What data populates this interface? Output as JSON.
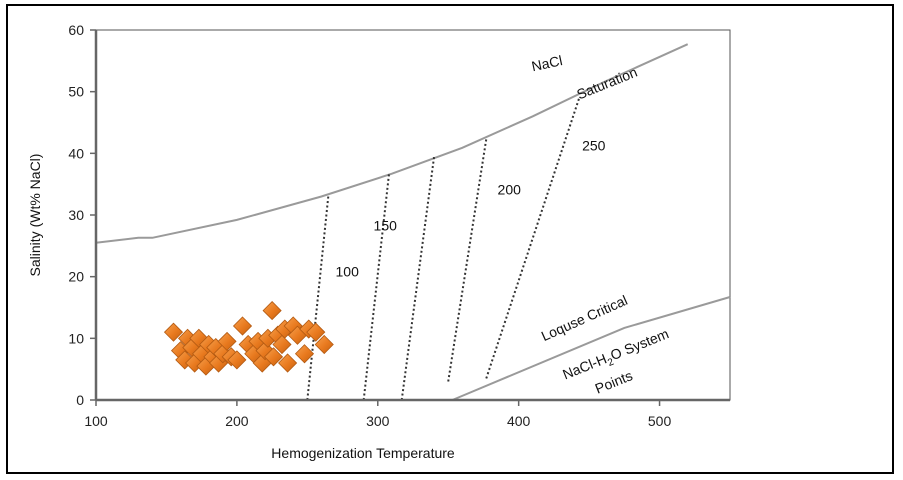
{
  "chart_data": {
    "type": "scatter",
    "xlabel": "Hemogenization Temperature",
    "ylabel": "Salinity (Wt% NaCl)",
    "xlim": [
      100,
      550
    ],
    "ylim": [
      0,
      60
    ],
    "x_ticks": [
      100,
      200,
      300,
      400,
      500
    ],
    "y_ticks": [
      0,
      10,
      20,
      30,
      40,
      50,
      60
    ],
    "grid": false,
    "marker_color": "#e8791e",
    "curve_color": "#9a9a9a",
    "dotted_color": "#333333",
    "points": [
      {
        "x": 155,
        "y": 11
      },
      {
        "x": 160,
        "y": 8
      },
      {
        "x": 163,
        "y": 6.5
      },
      {
        "x": 165,
        "y": 10
      },
      {
        "x": 168,
        "y": 8.5
      },
      {
        "x": 170,
        "y": 6
      },
      {
        "x": 173,
        "y": 10
      },
      {
        "x": 175,
        "y": 7.5
      },
      {
        "x": 178,
        "y": 5.5
      },
      {
        "x": 180,
        "y": 9
      },
      {
        "x": 183,
        "y": 7
      },
      {
        "x": 185,
        "y": 8.5
      },
      {
        "x": 187,
        "y": 6
      },
      {
        "x": 190,
        "y": 7.5
      },
      {
        "x": 193,
        "y": 9.5
      },
      {
        "x": 196,
        "y": 7
      },
      {
        "x": 200,
        "y": 6.5
      },
      {
        "x": 204,
        "y": 12
      },
      {
        "x": 208,
        "y": 9
      },
      {
        "x": 212,
        "y": 7.5
      },
      {
        "x": 215,
        "y": 9.5
      },
      {
        "x": 218,
        "y": 6
      },
      {
        "x": 220,
        "y": 8
      },
      {
        "x": 222,
        "y": 10
      },
      {
        "x": 225,
        "y": 14.5
      },
      {
        "x": 226,
        "y": 7
      },
      {
        "x": 229,
        "y": 10.5
      },
      {
        "x": 232,
        "y": 9
      },
      {
        "x": 234,
        "y": 11.5
      },
      {
        "x": 236,
        "y": 6
      },
      {
        "x": 240,
        "y": 12
      },
      {
        "x": 243,
        "y": 10.5
      },
      {
        "x": 248,
        "y": 7.5
      },
      {
        "x": 251,
        "y": 11.5
      },
      {
        "x": 256,
        "y": 11
      },
      {
        "x": 262,
        "y": 9
      }
    ],
    "saturation_curve": {
      "points": [
        {
          "x": 100,
          "y": 25.5
        },
        {
          "x": 130,
          "y": 26.3
        },
        {
          "x": 140,
          "y": 26.3
        },
        {
          "x": 200,
          "y": 29.2
        },
        {
          "x": 260,
          "y": 33
        },
        {
          "x": 310,
          "y": 36.7
        },
        {
          "x": 360,
          "y": 40.9
        },
        {
          "x": 410,
          "y": 46
        },
        {
          "x": 460,
          "y": 51.5
        },
        {
          "x": 520,
          "y": 57.7
        }
      ]
    },
    "critical_curve": {
      "points": [
        {
          "x": 353,
          "y": 0
        },
        {
          "x": 475,
          "y": 11.7
        },
        {
          "x": 550,
          "y": 16.7
        }
      ]
    },
    "isobars": [
      {
        "label": "100",
        "x1": 250,
        "y1": 0,
        "x2": 265,
        "y2": 33.3,
        "label_x": 270,
        "label_y": 20
      },
      {
        "label": "150",
        "x1": 290,
        "y1": 0,
        "x2": 308,
        "y2": 36.7,
        "label_x": 297,
        "label_y": 27.5
      },
      {
        "label": "",
        "x1": 317,
        "y1": 0,
        "x2": 340,
        "y2": 39.5,
        "label_x": 0,
        "label_y": 0
      },
      {
        "label": "200",
        "x1": 350,
        "y1": 3,
        "x2": 377,
        "y2": 42.3,
        "label_x": 385,
        "label_y": 33.3
      },
      {
        "label": "250",
        "x1": 377,
        "y1": 3.5,
        "x2": 443,
        "y2": 49,
        "label_x": 445,
        "label_y": 40.5
      }
    ],
    "annotations": {
      "nacl": "NaCl",
      "saturation": "Saturation",
      "critical": "Loquse Critical",
      "system_pre": "NaCl-H",
      "system_sub": "2",
      "system_post": "O System",
      "points": "Points"
    }
  }
}
